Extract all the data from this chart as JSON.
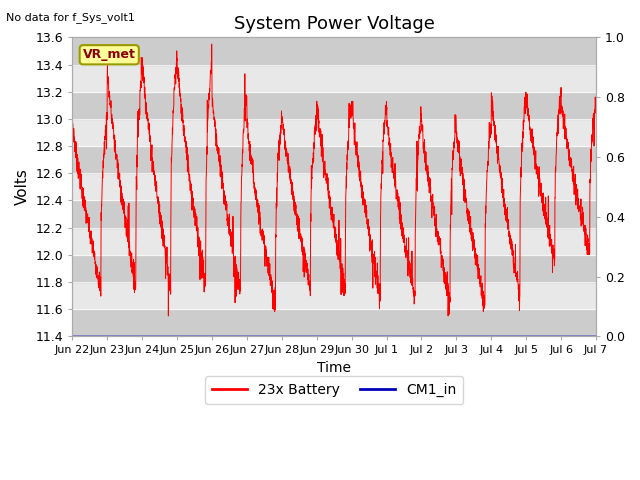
{
  "title": "System Power Voltage",
  "no_data_text": "No data for f_Sys_volt1",
  "xlabel": "Time",
  "ylabel": "Volts",
  "ylim_left": [
    11.4,
    13.6
  ],
  "ylim_right": [
    0.0,
    1.0
  ],
  "bg_color": "#ffffff",
  "plot_bg_color": "#e0e0e0",
  "band_color_dark": "#cccccc",
  "band_color_light": "#e8e8e8",
  "line_color_battery": "#ff0000",
  "line_color_cm1": "#0000bb",
  "vr_met_bg": "#ffff99",
  "vr_met_border": "#999900",
  "vr_met_text": "#8b0000",
  "tick_dates": [
    "Jun 22",
    "Jun 23",
    "Jun 24",
    "Jun 25",
    "Jun 26",
    "Jun 27",
    "Jun 28",
    "Jun 29",
    "Jun 30",
    "Jul 1",
    "Jul 2",
    "Jul 3",
    "Jul 4",
    "Jul 5",
    "Jul 6",
    "Jul 7"
  ],
  "tick_positions": [
    0,
    1,
    2,
    3,
    4,
    5,
    6,
    7,
    8,
    9,
    10,
    11,
    12,
    13,
    14,
    15
  ],
  "yticks_left": [
    11.4,
    11.6,
    11.8,
    12.0,
    12.2,
    12.4,
    12.6,
    12.8,
    13.0,
    13.2,
    13.4,
    13.6
  ],
  "yticks_right": [
    0.0,
    0.2,
    0.4,
    0.6,
    0.8,
    1.0
  ],
  "legend_entries": [
    "23x Battery",
    "CM1_in"
  ],
  "legend_colors": [
    "#ff0000",
    "#0000bb"
  ]
}
